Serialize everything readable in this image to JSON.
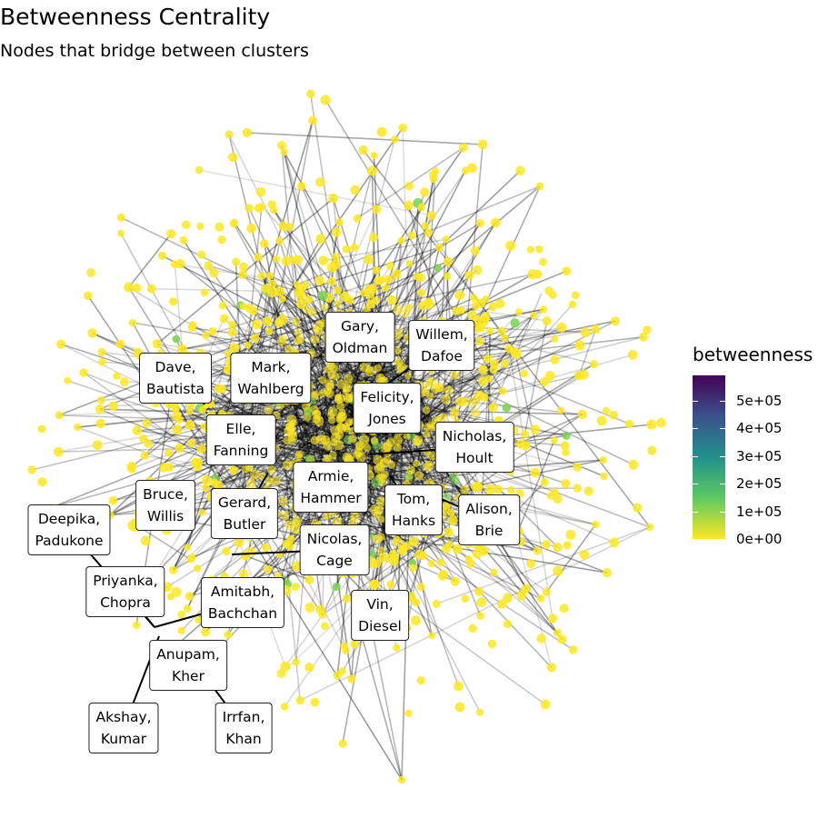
{
  "title": "Betweenness Centrality",
  "subtitle": "Nodes that bridge between clusters",
  "legend": {
    "title": "betweenness",
    "ticks": [
      "0e+00",
      "1e+05",
      "2e+05",
      "3e+05",
      "4e+05",
      "5e+05"
    ],
    "colors": [
      "#fde725",
      "#5ec962",
      "#21918c",
      "#3b528b",
      "#440154"
    ]
  },
  "labels": [
    {
      "first": "Gary,",
      "last": "Oldman"
    },
    {
      "first": "Willem,",
      "last": "Dafoe"
    },
    {
      "first": "Dave,",
      "last": "Bautista"
    },
    {
      "first": "Mark,",
      "last": "Wahlberg"
    },
    {
      "first": "Felicity,",
      "last": "Jones"
    },
    {
      "first": "Elle,",
      "last": "Fanning"
    },
    {
      "first": "Nicholas,",
      "last": "Hoult"
    },
    {
      "first": "Armie,",
      "last": "Hammer"
    },
    {
      "first": "Bruce,",
      "last": "Willis"
    },
    {
      "first": "Gerard,",
      "last": "Butler"
    },
    {
      "first": "Tom,",
      "last": "Hanks"
    },
    {
      "first": "Alison,",
      "last": "Brie"
    },
    {
      "first": "Deepika,",
      "last": "Padukone"
    },
    {
      "first": "Nicolas,",
      "last": "Cage"
    },
    {
      "first": "Priyanka,",
      "last": "Chopra"
    },
    {
      "first": "Amitabh,",
      "last": "Bachchan"
    },
    {
      "first": "Vin,",
      "last": "Diesel"
    },
    {
      "first": "Anupam,",
      "last": "Kher"
    },
    {
      "first": "Akshay,",
      "last": "Kumar"
    },
    {
      "first": "Irrfan,",
      "last": "Khan"
    }
  ]
}
